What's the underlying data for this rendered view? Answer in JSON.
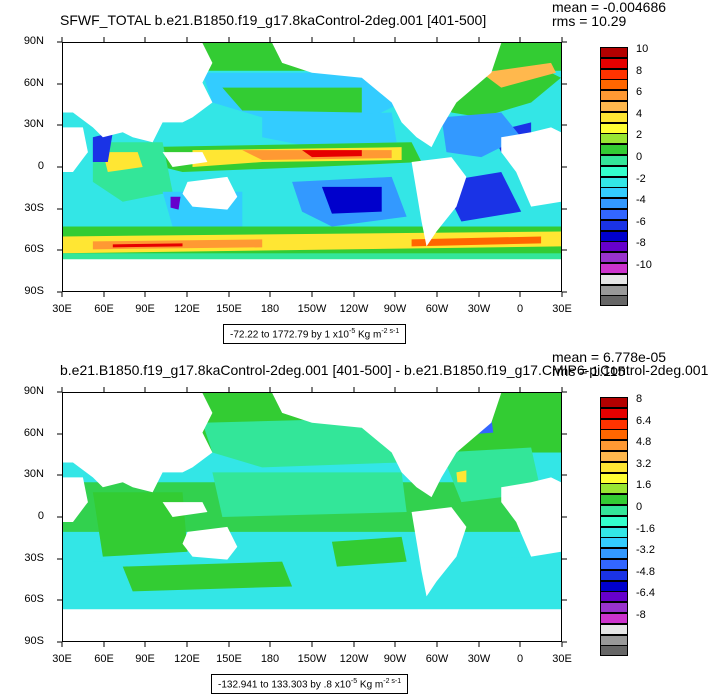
{
  "top": {
    "title": "SFWF_TOTAL b.e21.B1850.f19_g17.8kaControl-2deg.001 [401-500]",
    "mean": "mean = -0.004686",
    "rms": "rms = 10.29",
    "range": {
      "text": "-72.22 to 1772.79 by 1 x10",
      "exp": "-5",
      "unit": " Kg m",
      "unit_exp": "-2 s-1"
    },
    "colorbar_labels": [
      "10",
      "8",
      "6",
      "4",
      "2",
      "0",
      "-2",
      "-4",
      "-6",
      "-8",
      "-10"
    ],
    "colorbar_colors": [
      "#b30000",
      "#e60000",
      "#ff3300",
      "#ff6600",
      "#ff9933",
      "#ffb84d",
      "#ffe633",
      "#ffff33",
      "#99e633",
      "#33cc33",
      "#33e699",
      "#33ffcc",
      "#33e6e6",
      "#33ccff",
      "#3399ff",
      "#3366ff",
      "#1a33e6",
      "#0000cc",
      "#6600cc",
      "#9933cc",
      "#cc33cc",
      "#e6e6e6",
      "#999999",
      "#666666"
    ]
  },
  "bottom": {
    "title": "b.e21.B1850.f19_g17.8kaControl-2deg.001 [401-500] - b.e21.B1850.f19_g17.CMIP6-piControl-2deg.001",
    "mean": "mean = 6.778e-05",
    "rms": "rms = 1.115",
    "range": {
      "text": "-132.941 to 133.303 by .8 x10",
      "exp": "-5",
      "unit": " Kg m",
      "unit_exp": "-2 s-1"
    },
    "colorbar_labels": [
      "8",
      "6.4",
      "4.8",
      "3.2",
      "1.6",
      "0",
      "-1.6",
      "-3.2",
      "-4.8",
      "-6.4",
      "-8"
    ],
    "colorbar_colors": [
      "#b30000",
      "#e60000",
      "#ff3300",
      "#ff6600",
      "#ff9933",
      "#ffb84d",
      "#ffe633",
      "#ffff33",
      "#99e633",
      "#33cc33",
      "#33e699",
      "#33ffcc",
      "#33e6e6",
      "#33ccff",
      "#3399ff",
      "#3366ff",
      "#1a33e6",
      "#0000cc",
      "#6600cc",
      "#9933cc",
      "#cc33cc",
      "#e6e6e6",
      "#999999",
      "#666666"
    ]
  },
  "axes": {
    "lat_labels": [
      "90N",
      "60N",
      "30N",
      "0",
      "30S",
      "60S",
      "90S"
    ],
    "lon_labels": [
      "30E",
      "60E",
      "90E",
      "120E",
      "150E",
      "180",
      "150W",
      "120W",
      "90W",
      "60W",
      "30W",
      "0",
      "30E"
    ]
  },
  "colors": {
    "ocean_base_top": "#33e6e6",
    "ocean_base_bottom": "#33e6e6",
    "land": "#ffffff"
  }
}
